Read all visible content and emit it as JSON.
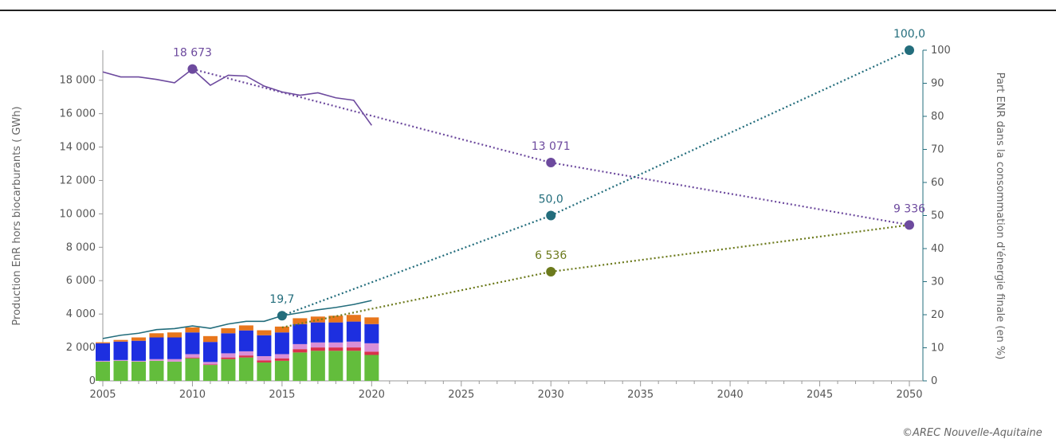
{
  "chart_data": {
    "type": "bar",
    "xlabel": "",
    "ylabel_left": "Production EnR hors biocarburants ( GWh)",
    "ylabel_right": "Part ENR dans la consommation d'énergie finale (en %)",
    "x_range": [
      2005,
      2050
    ],
    "x_ticks": [
      "2005",
      "2010",
      "2015",
      "2020",
      "2025",
      "2030",
      "2035",
      "2040",
      "2045",
      "2050"
    ],
    "ylim_left": [
      0,
      19800
    ],
    "y_ticks_left": [
      "0",
      "2 000",
      "4 000",
      "6 000",
      "8 000",
      "10 000",
      "12 000",
      "14 000",
      "16 000",
      "18 000"
    ],
    "ylim_right": [
      0,
      100
    ],
    "y_ticks_right": [
      "0",
      "10",
      "20",
      "30",
      "40",
      "50",
      "60",
      "70",
      "80",
      "90",
      "100"
    ],
    "colors": {
      "green": "#63bd3c",
      "red": "#d9314b",
      "pink": "#d98fd6",
      "blue": "#1d2fe0",
      "orange": "#e8761c",
      "purple": "#6d4a9e",
      "teal": "#236d7c",
      "olive": "#6c7a1c"
    },
    "bar_years": [
      2005,
      2006,
      2007,
      2008,
      2009,
      2010,
      2011,
      2012,
      2013,
      2014,
      2015,
      2016,
      2017,
      2018,
      2019,
      2020
    ],
    "stacks": [
      {
        "color": "green",
        "values": [
          1150,
          1200,
          1150,
          1200,
          1150,
          1350,
          950,
          1300,
          1400,
          1100,
          1200,
          1700,
          1800,
          1800,
          1800,
          1550
        ]
      },
      {
        "color": "red",
        "values": [
          0,
          0,
          0,
          0,
          0,
          50,
          30,
          100,
          120,
          130,
          150,
          200,
          200,
          200,
          200,
          200
        ]
      },
      {
        "color": "pink",
        "values": [
          50,
          50,
          50,
          100,
          150,
          200,
          150,
          250,
          250,
          250,
          250,
          300,
          300,
          300,
          350,
          500
        ]
      },
      {
        "color": "blue",
        "values": [
          1050,
          1100,
          1200,
          1300,
          1300,
          1300,
          1200,
          1200,
          1250,
          1250,
          1300,
          1200,
          1200,
          1200,
          1200,
          1150
        ]
      },
      {
        "color": "orange",
        "values": [
          60,
          100,
          200,
          250,
          300,
          300,
          350,
          300,
          300,
          300,
          350,
          350,
          350,
          400,
          400,
          400
        ]
      }
    ],
    "series": [
      {
        "name": "",
        "axis": "left",
        "color": "purple",
        "style": "solid",
        "x": [
          2005,
          2006,
          2007,
          2008,
          2009,
          2010,
          2011,
          2012,
          2013,
          2014,
          2015,
          2016,
          2017,
          2018,
          2019,
          2020
        ],
        "values": [
          18500,
          18200,
          18200,
          18050,
          17850,
          18673,
          17700,
          18300,
          18250,
          17650,
          17300,
          17100,
          17250,
          16950,
          16800,
          15300
        ]
      },
      {
        "name": "",
        "axis": "left",
        "color": "purple",
        "style": "dotted",
        "x": [
          2010,
          2030,
          2050
        ],
        "values": [
          18673,
          13071,
          9336
        ]
      },
      {
        "name": "",
        "axis": "right",
        "color": "teal",
        "style": "solid",
        "x": [
          2005,
          2006,
          2007,
          2008,
          2009,
          2010,
          2011,
          2012,
          2013,
          2014,
          2015,
          2016,
          2017,
          2018,
          2019,
          2020
        ],
        "values": [
          12.8,
          13.8,
          14.4,
          15.5,
          15.8,
          16.6,
          15.9,
          17.2,
          18.0,
          18.0,
          19.7,
          20.6,
          21.5,
          22.2,
          23.1,
          24.3
        ]
      },
      {
        "name": "",
        "axis": "right",
        "color": "teal",
        "style": "dotted",
        "x": [
          2015,
          2030,
          2050
        ],
        "values": [
          19.7,
          50.0,
          100.0
        ]
      },
      {
        "name": "",
        "axis": "left",
        "color": "olive",
        "style": "dotted",
        "x": [
          2015,
          2030,
          2050
        ],
        "values": [
          3200,
          6536,
          9336
        ]
      }
    ],
    "markers": [
      {
        "x": 2010,
        "value": 18673,
        "axis": "left",
        "color": "purple",
        "label": "18 673"
      },
      {
        "x": 2030,
        "value": 13071,
        "axis": "left",
        "color": "purple",
        "label": "13 071"
      },
      {
        "x": 2050,
        "value": 9336,
        "axis": "left",
        "color": "purple",
        "label": "9 336"
      },
      {
        "x": 2015,
        "value": 19.7,
        "axis": "right",
        "color": "teal",
        "label": "19,7"
      },
      {
        "x": 2030,
        "value": 50.0,
        "axis": "right",
        "color": "teal",
        "label": "50,0"
      },
      {
        "x": 2050,
        "value": 100.0,
        "axis": "right",
        "color": "teal",
        "label": "100,0"
      },
      {
        "x": 2030,
        "value": 6536,
        "axis": "left",
        "color": "olive",
        "label": "6 536"
      }
    ]
  },
  "credit": "©AREC Nouvelle-Aquitaine"
}
